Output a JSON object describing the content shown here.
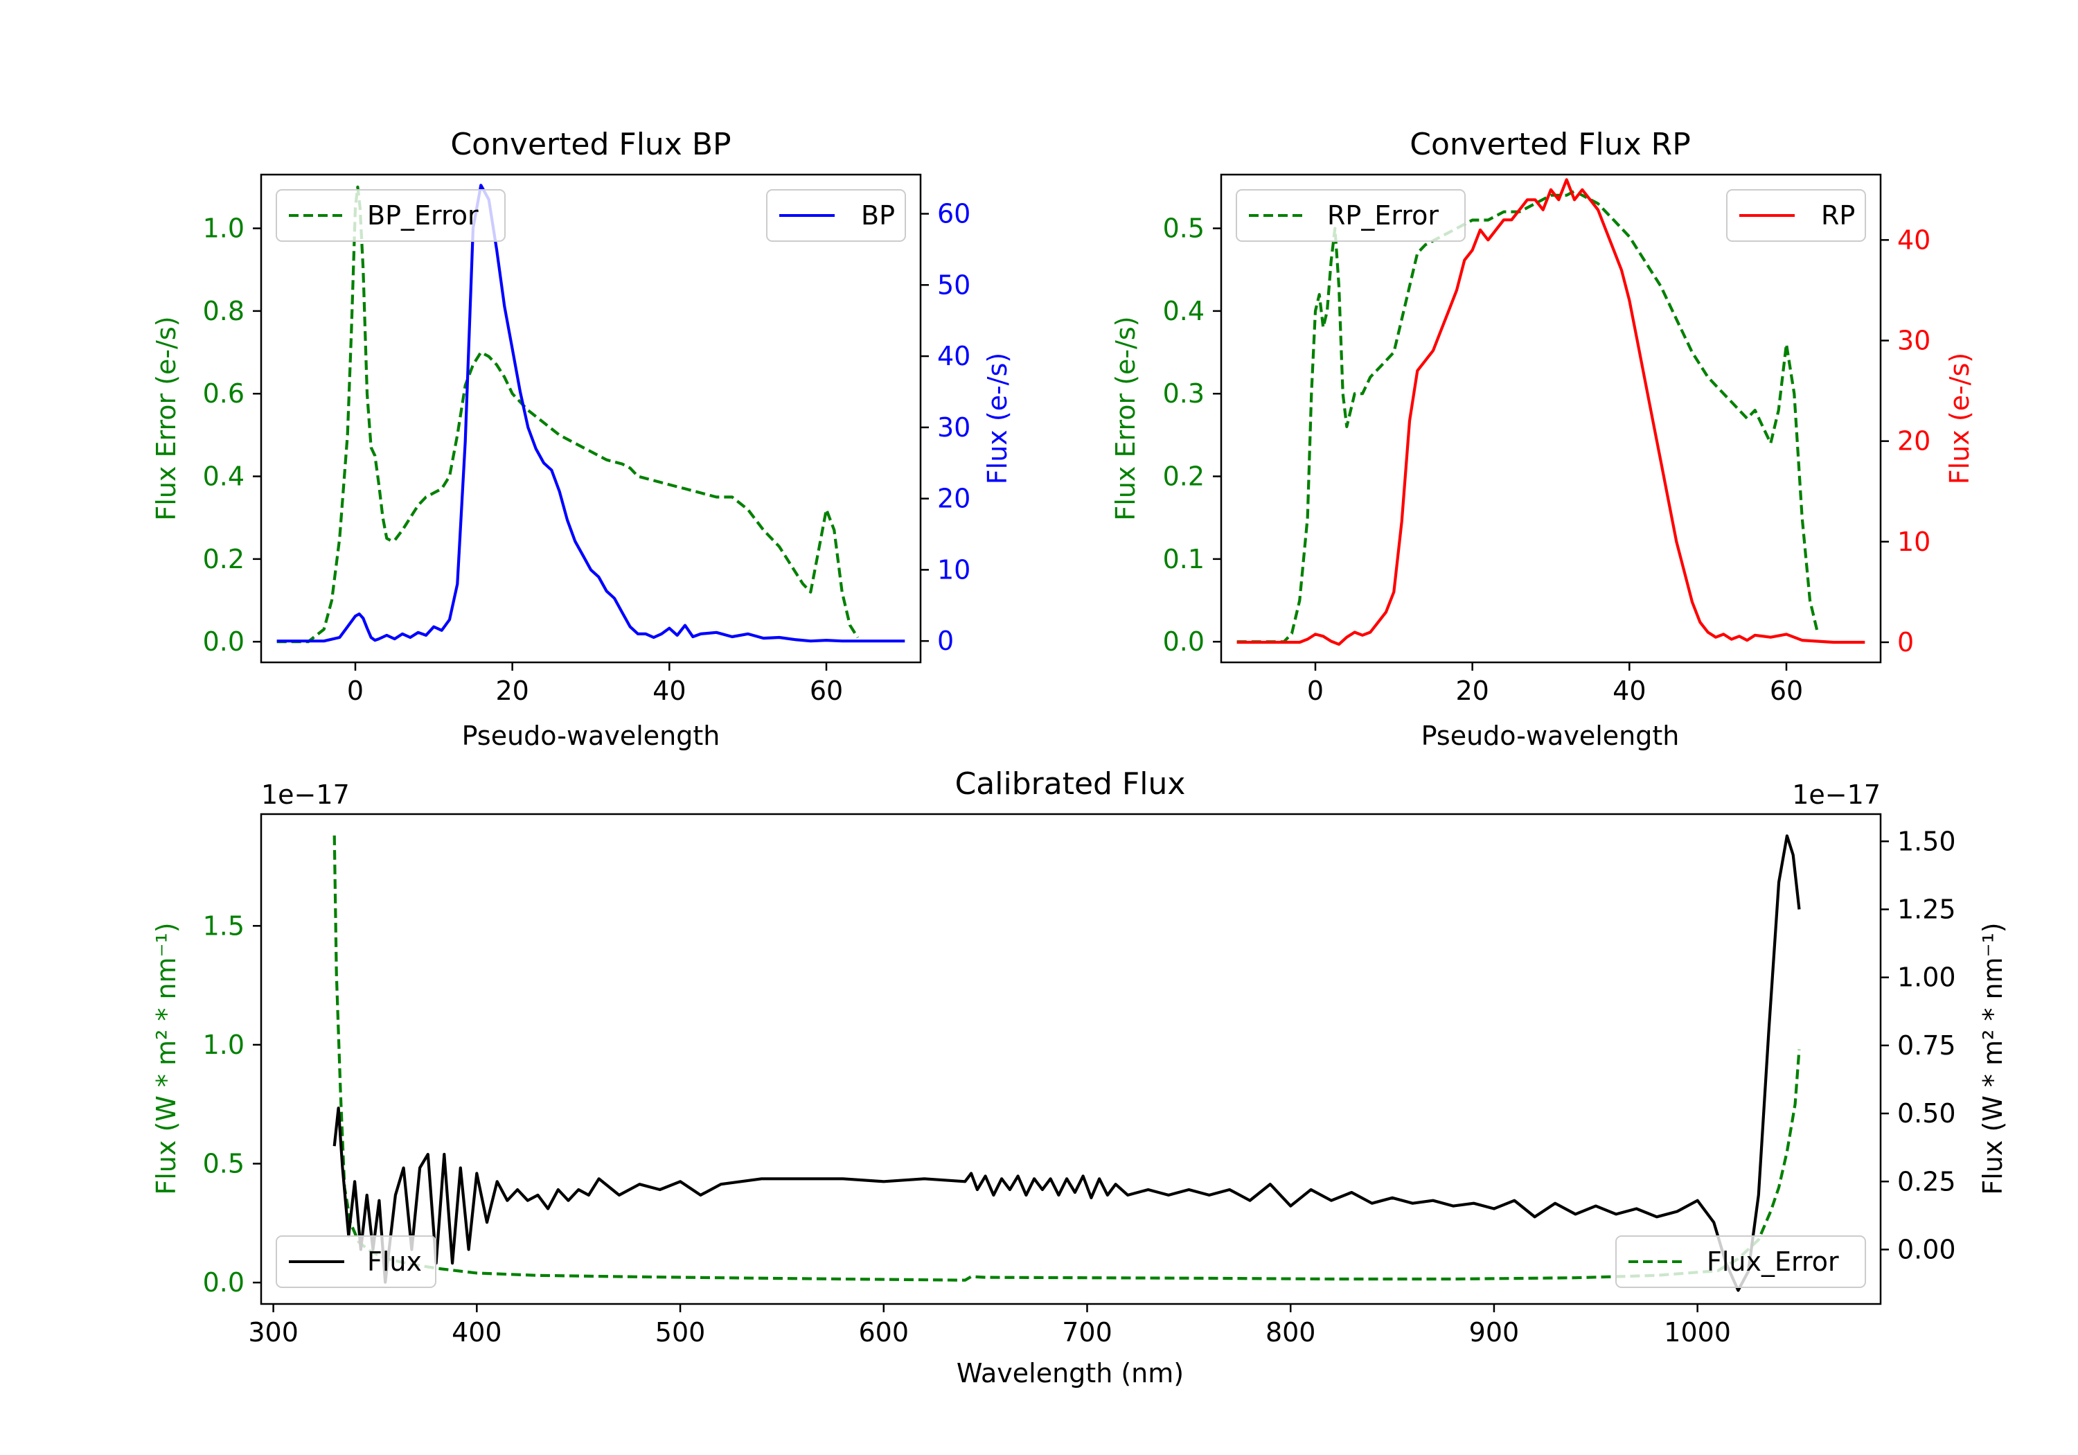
{
  "colors": {
    "green": "#008000",
    "blue": "#0000ff",
    "red": "#ff0000",
    "black": "#000000"
  },
  "chart_data": [
    {
      "id": "bp",
      "type": "line",
      "title": "Converted Flux BP",
      "xlabel": "Pseudo-wavelength",
      "ylabel_left": "Flux Error (e-/s)",
      "ylabel_right": "Flux (e-/s)",
      "xlim": [
        -12,
        72
      ],
      "ylim_left": [
        -0.05,
        1.13
      ],
      "ylim_right": [
        -3,
        65.5
      ],
      "xticks": [
        0,
        20,
        40,
        60
      ],
      "xtick_labels": [
        "0",
        "20",
        "40",
        "60"
      ],
      "yticks_left": [
        0.0,
        0.2,
        0.4,
        0.6,
        0.8,
        1.0
      ],
      "ytick_labels_left": [
        "0.0",
        "0.2",
        "0.4",
        "0.6",
        "0.8",
        "1.0"
      ],
      "yticks_right": [
        0,
        10,
        20,
        30,
        40,
        50,
        60
      ],
      "ytick_labels_right": [
        "0",
        "10",
        "20",
        "30",
        "40",
        "50",
        "60"
      ],
      "series": [
        {
          "name": "BP_Error",
          "axis": "left",
          "color": "#008000",
          "style": "dashed",
          "legend": "top-left",
          "x": [
            -10,
            -6,
            -4,
            -3,
            -2,
            -1,
            -0.5,
            0,
            0.3,
            0.6,
            1,
            1.5,
            2,
            2.5,
            3,
            3.5,
            4,
            4.5,
            5,
            6,
            7,
            8,
            9,
            10,
            11,
            12,
            13,
            14,
            15,
            16,
            17,
            18,
            19,
            20,
            22,
            24,
            26,
            28,
            30,
            32,
            34,
            35,
            36,
            38,
            40,
            42,
            44,
            46,
            48,
            50,
            52,
            54,
            56,
            57,
            58,
            59,
            60,
            61,
            62,
            63,
            64
          ],
          "y": [
            0.0,
            0.0,
            0.03,
            0.1,
            0.25,
            0.5,
            0.75,
            1.05,
            1.1,
            1.05,
            0.9,
            0.6,
            0.47,
            0.45,
            0.38,
            0.3,
            0.25,
            0.245,
            0.245,
            0.27,
            0.3,
            0.33,
            0.35,
            0.36,
            0.37,
            0.4,
            0.5,
            0.62,
            0.67,
            0.7,
            0.69,
            0.67,
            0.64,
            0.6,
            0.56,
            0.53,
            0.5,
            0.48,
            0.46,
            0.44,
            0.43,
            0.42,
            0.4,
            0.39,
            0.38,
            0.37,
            0.36,
            0.35,
            0.35,
            0.32,
            0.27,
            0.23,
            0.17,
            0.14,
            0.12,
            0.22,
            0.32,
            0.27,
            0.12,
            0.04,
            0.01
          ]
        },
        {
          "name": "BP",
          "axis": "right",
          "color": "#0000ff",
          "style": "solid",
          "legend": "top-right",
          "x": [
            -10,
            -4,
            -2,
            -1,
            0,
            0.5,
            1,
            1.5,
            2,
            2.5,
            3,
            4,
            5,
            6,
            7,
            8,
            9,
            10,
            11,
            12,
            13,
            14,
            15,
            16,
            17,
            18,
            19,
            20,
            21,
            22,
            23,
            24,
            25,
            26,
            27,
            28,
            29,
            30,
            31,
            32,
            33,
            34,
            35,
            36,
            37,
            38,
            39,
            40,
            41,
            42,
            43,
            44,
            46,
            48,
            50,
            52,
            54,
            56,
            58,
            60,
            62,
            66,
            70
          ],
          "y": [
            0,
            0,
            0.5,
            2,
            3.5,
            3.8,
            3.2,
            1.8,
            0.5,
            0.1,
            0.3,
            0.8,
            0.3,
            1,
            0.5,
            1.2,
            0.8,
            2,
            1.5,
            3,
            8,
            28,
            58,
            64,
            62,
            55,
            47,
            41,
            35,
            30,
            27,
            25,
            24,
            21,
            17,
            14,
            12,
            10,
            9,
            7,
            6,
            4,
            2,
            1,
            1,
            0.5,
            1,
            1.8,
            0.8,
            2.2,
            0.6,
            1,
            1.2,
            0.6,
            1,
            0.4,
            0.5,
            0.2,
            0,
            0.1,
            0,
            0,
            0
          ]
        }
      ]
    },
    {
      "id": "rp",
      "type": "line",
      "title": "Converted Flux RP",
      "xlabel": "Pseudo-wavelength",
      "ylabel_left": "Flux Error (e-/s)",
      "ylabel_right": "Flux (e-/s)",
      "xlim": [
        -12,
        72
      ],
      "ylim_left": [
        -0.025,
        0.565
      ],
      "ylim_right": [
        -2,
        46.5
      ],
      "xticks": [
        0,
        20,
        40,
        60
      ],
      "xtick_labels": [
        "0",
        "20",
        "40",
        "60"
      ],
      "yticks_left": [
        0.0,
        0.1,
        0.2,
        0.3,
        0.4,
        0.5
      ],
      "ytick_labels_left": [
        "0.0",
        "0.1",
        "0.2",
        "0.3",
        "0.4",
        "0.5"
      ],
      "yticks_right": [
        0,
        10,
        20,
        30,
        40
      ],
      "ytick_labels_right": [
        "0",
        "10",
        "20",
        "30",
        "40"
      ],
      "series": [
        {
          "name": "RP_Error",
          "axis": "left",
          "color": "#008000",
          "style": "dashed",
          "legend": "top-left",
          "x": [
            -10,
            -4,
            -3,
            -2,
            -1,
            -0.5,
            0,
            0.5,
            1,
            1.5,
            2,
            2.5,
            3,
            3.5,
            4,
            4.5,
            5,
            6,
            7,
            8,
            9,
            10,
            11,
            12,
            13,
            14,
            16,
            18,
            20,
            22,
            24,
            26,
            28,
            30,
            31,
            32,
            33,
            34,
            36,
            38,
            40,
            42,
            44,
            46,
            48,
            50,
            52,
            53,
            54,
            55,
            56,
            57,
            58,
            59,
            60,
            61,
            62,
            63,
            64
          ],
          "y": [
            0,
            0,
            0.01,
            0.05,
            0.15,
            0.3,
            0.4,
            0.42,
            0.38,
            0.4,
            0.46,
            0.5,
            0.43,
            0.3,
            0.26,
            0.28,
            0.3,
            0.3,
            0.32,
            0.33,
            0.34,
            0.35,
            0.39,
            0.43,
            0.47,
            0.48,
            0.49,
            0.5,
            0.51,
            0.51,
            0.52,
            0.52,
            0.53,
            0.54,
            0.54,
            0.54,
            0.545,
            0.54,
            0.53,
            0.51,
            0.49,
            0.46,
            0.43,
            0.39,
            0.35,
            0.32,
            0.3,
            0.29,
            0.28,
            0.27,
            0.28,
            0.26,
            0.24,
            0.28,
            0.36,
            0.3,
            0.15,
            0.05,
            0.01
          ]
        },
        {
          "name": "RP",
          "axis": "right",
          "color": "#ff0000",
          "style": "solid",
          "legend": "top-right",
          "x": [
            -10,
            -2,
            -1,
            0,
            1,
            2,
            3,
            4,
            5,
            6,
            7,
            8,
            9,
            10,
            11,
            12,
            13,
            14,
            15,
            16,
            17,
            18,
            19,
            20,
            21,
            22,
            23,
            24,
            25,
            26,
            27,
            28,
            29,
            30,
            31,
            32,
            33,
            34,
            35,
            36,
            37,
            38,
            39,
            40,
            41,
            42,
            43,
            44,
            45,
            46,
            47,
            48,
            49,
            50,
            51,
            52,
            53,
            54,
            55,
            56,
            58,
            60,
            62,
            66,
            70
          ],
          "y": [
            0,
            0,
            0.3,
            0.8,
            0.6,
            0.1,
            -0.2,
            0.5,
            1,
            0.7,
            1,
            2,
            3,
            5,
            12,
            22,
            27,
            28,
            29,
            31,
            33,
            35,
            38,
            39,
            41,
            40,
            41,
            42,
            42,
            43,
            44,
            44,
            43,
            45,
            44,
            46,
            44,
            45,
            44,
            43,
            41,
            39,
            37,
            34,
            30,
            26,
            22,
            18,
            14,
            10,
            7,
            4,
            2,
            1,
            0.5,
            0.8,
            0.3,
            0.6,
            0.2,
            0.7,
            0.5,
            0.8,
            0.2,
            0,
            0
          ]
        }
      ]
    },
    {
      "id": "cal",
      "type": "line",
      "title": "Calibrated Flux",
      "xlabel": "Wavelength (nm)",
      "ylabel_left": "Flux (W * m² * nm⁻¹)",
      "ylabel_right": "Flux (W * m² * nm⁻¹)",
      "offset_left": "1e−17",
      "offset_right": "1e−17",
      "xlim": [
        294,
        1090
      ],
      "ylim_left": [
        -0.09,
        1.97
      ],
      "ylim_right": [
        -0.2,
        1.6
      ],
      "xticks": [
        300,
        400,
        500,
        600,
        700,
        800,
        900,
        1000
      ],
      "xtick_labels": [
        "300",
        "400",
        "500",
        "600",
        "700",
        "800",
        "900",
        "1000"
      ],
      "yticks_left": [
        0.0,
        0.5,
        1.0,
        1.5
      ],
      "ytick_labels_left": [
        "0.0",
        "0.5",
        "1.0",
        "1.5"
      ],
      "yticks_right": [
        0.0,
        0.25,
        0.5,
        0.75,
        1.0,
        1.25,
        1.5
      ],
      "ytick_labels_right": [
        "0.00",
        "0.25",
        "0.50",
        "0.75",
        "1.00",
        "1.25",
        "1.50"
      ],
      "series": [
        {
          "name": "Flux_Error",
          "axis": "left",
          "color": "#008000",
          "style": "dashed",
          "legend": "bottom-right",
          "x": [
            330,
            331,
            333,
            335,
            338,
            342,
            348,
            356,
            366,
            380,
            400,
            430,
            470,
            520,
            580,
            640,
            643,
            650,
            700,
            760,
            820,
            880,
            940,
            980,
            1010,
            1020,
            1030,
            1036,
            1040,
            1044,
            1048,
            1050
          ],
          "y": [
            1.88,
            1.3,
            0.8,
            0.4,
            0.25,
            0.17,
            0.13,
            0.1,
            0.08,
            0.06,
            0.04,
            0.03,
            0.025,
            0.02,
            0.015,
            0.01,
            0.025,
            0.022,
            0.02,
            0.018,
            0.015,
            0.015,
            0.02,
            0.03,
            0.05,
            0.1,
            0.18,
            0.3,
            0.4,
            0.55,
            0.75,
            0.98
          ]
        },
        {
          "name": "Flux",
          "axis": "right",
          "color": "#000000",
          "style": "solid",
          "legend": "bottom-left",
          "x": [
            330,
            332,
            334,
            337,
            340,
            343,
            346,
            349,
            352,
            355,
            360,
            364,
            368,
            372,
            376,
            380,
            384,
            388,
            392,
            396,
            400,
            405,
            410,
            415,
            420,
            425,
            430,
            435,
            440,
            445,
            450,
            455,
            460,
            470,
            480,
            490,
            500,
            510,
            520,
            540,
            560,
            580,
            600,
            620,
            640,
            643,
            646,
            650,
            654,
            658,
            662,
            666,
            670,
            674,
            678,
            682,
            686,
            690,
            694,
            698,
            702,
            706,
            710,
            714,
            720,
            730,
            740,
            750,
            760,
            770,
            780,
            790,
            800,
            810,
            820,
            830,
            840,
            850,
            860,
            870,
            880,
            890,
            900,
            910,
            920,
            930,
            940,
            950,
            960,
            970,
            980,
            990,
            1000,
            1008,
            1014,
            1020,
            1025,
            1030,
            1035,
            1040,
            1044,
            1047,
            1050
          ],
          "y": [
            0.38,
            0.52,
            0.3,
            0.05,
            0.25,
            0.0,
            0.2,
            0.0,
            0.18,
            -0.12,
            0.2,
            0.3,
            0.0,
            0.3,
            0.35,
            -0.05,
            0.35,
            -0.05,
            0.3,
            0.0,
            0.28,
            0.1,
            0.25,
            0.18,
            0.22,
            0.18,
            0.2,
            0.15,
            0.22,
            0.18,
            0.22,
            0.2,
            0.26,
            0.2,
            0.24,
            0.22,
            0.25,
            0.2,
            0.24,
            0.26,
            0.26,
            0.26,
            0.25,
            0.26,
            0.25,
            0.28,
            0.22,
            0.27,
            0.2,
            0.26,
            0.22,
            0.27,
            0.2,
            0.26,
            0.22,
            0.26,
            0.2,
            0.26,
            0.21,
            0.27,
            0.19,
            0.26,
            0.2,
            0.24,
            0.2,
            0.22,
            0.2,
            0.22,
            0.2,
            0.22,
            0.18,
            0.24,
            0.16,
            0.22,
            0.18,
            0.21,
            0.17,
            0.19,
            0.17,
            0.18,
            0.16,
            0.17,
            0.15,
            0.18,
            0.12,
            0.17,
            0.13,
            0.16,
            0.13,
            0.15,
            0.12,
            0.14,
            0.18,
            0.1,
            -0.05,
            -0.15,
            -0.08,
            0.2,
            0.8,
            1.35,
            1.52,
            1.45,
            1.25
          ]
        }
      ]
    }
  ]
}
